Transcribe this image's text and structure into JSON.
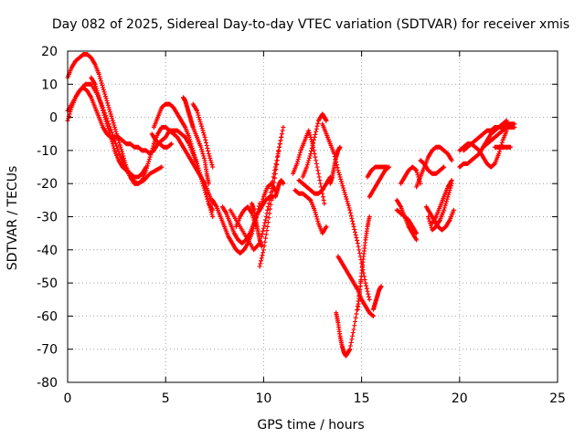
{
  "chart_data": {
    "type": "scatter",
    "title": "Day 082 of 2025, Sidereal Day-to-day VTEC variation (SDTVAR) for receiver xmis",
    "xlabel": "GPS time / hours",
    "ylabel": "SDTVAR / TECUs",
    "xlim": [
      0,
      25
    ],
    "ylim": [
      -80,
      20
    ],
    "xticks": [
      "0",
      "5",
      "10",
      "15",
      "20",
      "25"
    ],
    "yticks": [
      "20",
      "10",
      "0",
      "-10",
      "-20",
      "-30",
      "-40",
      "-50",
      "-60",
      "-70",
      "-80"
    ],
    "grid": true,
    "marker": "+",
    "color": "#ff0000",
    "series": [
      {
        "x": [
          0.0,
          0.2,
          0.4,
          0.6,
          0.8,
          1.0,
          1.2,
          1.4,
          1.6,
          1.8,
          2.0,
          2.2,
          2.4,
          2.6,
          2.8,
          3.0,
          3.2,
          3.4,
          3.6,
          3.8,
          4.0,
          4.2,
          4.4,
          4.6,
          4.8,
          5.0,
          5.2,
          5.4,
          5.6,
          5.8,
          6.0,
          6.2,
          6.4,
          6.6,
          6.8,
          7.0,
          7.2,
          7.4
        ],
        "y": [
          12,
          15,
          17,
          18,
          19,
          19,
          18,
          16,
          13,
          9,
          5,
          1,
          -3,
          -7,
          -11,
          -15,
          -18,
          -20,
          -20,
          -19,
          -16,
          -12,
          -8,
          -5,
          -3,
          -3,
          -4,
          -5,
          -6,
          -8,
          -10,
          -12,
          -14,
          -16,
          -18,
          -20,
          -23,
          -26
        ]
      },
      {
        "x": [
          0.0,
          0.3,
          0.6,
          0.9,
          1.2,
          1.5,
          1.8,
          2.1,
          2.4,
          2.7,
          3.0,
          3.3,
          3.6,
          3.9,
          4.2,
          4.5,
          4.8
        ],
        "y": [
          2,
          5,
          8,
          10,
          10,
          7,
          3,
          -2,
          -7,
          -12,
          -16,
          -19,
          -20,
          -19,
          -17,
          -16,
          -15
        ]
      },
      {
        "x": [
          0.0,
          0.2,
          0.4,
          0.6,
          0.8,
          1.0,
          1.2,
          1.4,
          1.6,
          1.8,
          2.0,
          2.2,
          2.4,
          2.6,
          2.8,
          3.0,
          3.2,
          3.4,
          3.6,
          3.8,
          4.0,
          4.2
        ],
        "y": [
          -1,
          3,
          6,
          8,
          9,
          8,
          6,
          3,
          0,
          -3,
          -5,
          -6,
          -6,
          -6,
          -7,
          -8,
          -8,
          -9,
          -9,
          -10,
          -10,
          -11
        ]
      },
      {
        "x": [
          1.2,
          1.4,
          1.6,
          1.8,
          2.0,
          2.2,
          2.4,
          2.6,
          2.8,
          3.0,
          3.2,
          3.4,
          3.6,
          3.8,
          4.0
        ],
        "y": [
          12,
          10,
          6,
          2,
          -2,
          -6,
          -10,
          -13,
          -15,
          -16,
          -17,
          -18,
          -18,
          -17,
          -15
        ]
      },
      {
        "x": [
          4.2,
          4.4,
          4.6,
          4.8,
          5.0,
          5.2,
          5.4,
          5.6,
          5.8,
          6.0,
          6.2,
          6.4,
          6.6,
          6.8,
          7.0,
          7.2,
          7.4
        ],
        "y": [
          -11,
          -10,
          -8,
          -7,
          -6,
          -4,
          -4,
          -4,
          -5,
          -6,
          -8,
          -11,
          -14,
          -18,
          -22,
          -26,
          -28
        ]
      },
      {
        "x": [
          4.4,
          4.6,
          4.8,
          5.0,
          5.2,
          5.4,
          5.6,
          5.8,
          6.0,
          6.2,
          6.4,
          6.6,
          6.8,
          7.0,
          7.2,
          7.4
        ],
        "y": [
          -3,
          0,
          3,
          4,
          4,
          3,
          1,
          -1,
          -3,
          -6,
          -10,
          -14,
          -18,
          -22,
          -26,
          -30
        ]
      },
      {
        "x": [
          4.3,
          4.5,
          4.7,
          4.9,
          5.1,
          5.3
        ],
        "y": [
          -5,
          -7,
          -8,
          -9,
          -9,
          -8
        ]
      },
      {
        "x": [
          5.9,
          6.0,
          6.1,
          6.2,
          6.3,
          6.4,
          6.6,
          6.8,
          7.0,
          7.1,
          7.2
        ],
        "y": [
          6,
          5,
          3,
          1,
          -1,
          -3,
          -6,
          -9,
          -13,
          -17,
          -20
        ]
      },
      {
        "x": [
          6.4,
          6.6,
          6.8,
          7.0,
          7.2,
          7.4
        ],
        "y": [
          4,
          2,
          -2,
          -6,
          -11,
          -15
        ]
      },
      {
        "x": [
          7.4,
          7.6,
          7.8,
          8.0,
          8.2,
          8.4,
          8.6,
          8.8,
          9.0,
          9.2,
          9.4,
          9.6,
          9.8
        ],
        "y": [
          -25,
          -27,
          -30,
          -33,
          -36,
          -38,
          -40,
          -41,
          -40,
          -38,
          -35,
          -31,
          -26
        ]
      },
      {
        "x": [
          7.9,
          8.1,
          8.3,
          8.5,
          8.7,
          8.9,
          9.1,
          9.3,
          9.5,
          9.7,
          9.9,
          10.1,
          10.3,
          10.5
        ],
        "y": [
          -27,
          -29,
          -32,
          -35,
          -37,
          -38,
          -37,
          -35,
          -32,
          -29,
          -27,
          -25,
          -24,
          -24
        ]
      },
      {
        "x": [
          8.3,
          8.6,
          8.9,
          9.2,
          9.5,
          9.8
        ],
        "y": [
          -28,
          -31,
          -34,
          -37,
          -40,
          -38
        ]
      },
      {
        "x": [
          8.6,
          8.8,
          9.0,
          9.2,
          9.4,
          9.6
        ],
        "y": [
          -33,
          -30,
          -28,
          -27,
          -29,
          -33
        ]
      },
      {
        "x": [
          9.4,
          9.5,
          9.6,
          9.7,
          9.8,
          9.9
        ],
        "y": [
          -26,
          -28,
          -31,
          -34,
          -37,
          -39
        ]
      },
      {
        "x": [
          9.8,
          10.0,
          10.2,
          10.4,
          10.6,
          10.8,
          11.0
        ],
        "y": [
          -45,
          -40,
          -33,
          -25,
          -17,
          -9,
          -3
        ]
      },
      {
        "x": [
          9.9,
          10.1,
          10.3,
          10.5,
          10.7,
          10.9
        ],
        "y": [
          -36,
          -31,
          -25,
          -18,
          -12,
          -6
        ]
      },
      {
        "x": [
          9.8,
          10.0,
          10.2,
          10.4,
          10.6
        ],
        "y": [
          -28,
          -24,
          -21,
          -20,
          -22
        ]
      },
      {
        "x": [
          10.6,
          10.7,
          10.8,
          10.9,
          11.0
        ],
        "y": [
          -24,
          -22,
          -20,
          -19,
          -20
        ]
      },
      {
        "x": [
          11.5,
          11.7,
          11.9,
          12.1,
          12.3,
          12.5,
          12.7,
          12.9,
          13.1
        ],
        "y": [
          -17,
          -14,
          -10,
          -7,
          -4,
          -8,
          -14,
          -20,
          -26
        ]
      },
      {
        "x": [
          11.6,
          11.8,
          12.0,
          12.2,
          12.4,
          12.6,
          12.8,
          13.0,
          13.2
        ],
        "y": [
          -22,
          -23,
          -23,
          -24,
          -25,
          -28,
          -32,
          -35,
          -33
        ]
      },
      {
        "x": [
          11.8,
          12.0,
          12.2,
          12.4,
          12.6,
          12.8,
          13.0,
          13.2,
          13.4
        ],
        "y": [
          -19,
          -20,
          -21,
          -22,
          -23,
          -23,
          -22,
          -20,
          -18
        ]
      },
      {
        "x": [
          12.0,
          12.2,
          12.4,
          12.6,
          12.8,
          13.0,
          13.1,
          13.2
        ],
        "y": [
          -18,
          -15,
          -11,
          -6,
          -1,
          1,
          0,
          -1
        ]
      },
      {
        "x": [
          13.0,
          13.2,
          13.4,
          13.6,
          13.8,
          14.0,
          14.2,
          14.4,
          14.6,
          14.8,
          15.0,
          15.2,
          15.4
        ],
        "y": [
          -2,
          -5,
          -8,
          -11,
          -16,
          -20,
          -24,
          -28,
          -33,
          -38,
          -44,
          -50,
          -55
        ]
      },
      {
        "x": [
          13.4,
          13.5,
          13.6,
          13.7,
          13.8,
          13.9
        ],
        "y": [
          -20,
          -18,
          -15,
          -12,
          -10,
          -9
        ]
      },
      {
        "x": [
          13.7,
          13.8,
          13.9,
          14.0,
          14.1,
          14.2,
          14.3,
          14.4,
          14.6,
          14.8,
          15.0
        ],
        "y": [
          -59,
          -62,
          -66,
          -69,
          -71,
          -72,
          -71,
          -70,
          -64,
          -57,
          -48
        ]
      },
      {
        "x": [
          13.8,
          14.0,
          14.2,
          14.4,
          14.6,
          14.8,
          15.0,
          15.2,
          15.4,
          15.6
        ],
        "y": [
          -42,
          -44,
          -46,
          -48,
          -50,
          -52,
          -55,
          -57,
          -59,
          -60
        ]
      },
      {
        "x": [
          14.8,
          14.9,
          15.0,
          15.1,
          15.2,
          15.3,
          15.4
        ],
        "y": [
          -58,
          -53,
          -47,
          -42,
          -37,
          -33,
          -30
        ]
      },
      {
        "x": [
          15.6,
          15.7,
          15.8,
          15.9,
          16.0
        ],
        "y": [
          -58,
          -56,
          -54,
          -52,
          -51
        ]
      },
      {
        "x": [
          15.3,
          15.5,
          15.7,
          15.9,
          16.1,
          16.3
        ],
        "y": [
          -18,
          -16,
          -15,
          -15,
          -15,
          -15
        ]
      },
      {
        "x": [
          15.4,
          15.6,
          15.8,
          16.0,
          16.2,
          16.4
        ],
        "y": [
          -24,
          -22,
          -20,
          -18,
          -16,
          -15
        ]
      },
      {
        "x": [
          16.8,
          17.0,
          17.2,
          17.4,
          17.6,
          17.8
        ],
        "y": [
          -25,
          -27,
          -30,
          -33,
          -35,
          -37
        ]
      },
      {
        "x": [
          16.8,
          17.0,
          17.2,
          17.4,
          17.6,
          17.8
        ],
        "y": [
          -28,
          -29,
          -30,
          -31,
          -33,
          -35
        ]
      },
      {
        "x": [
          17.0,
          17.2,
          17.4,
          17.6,
          17.8,
          18.0
        ],
        "y": [
          -20,
          -18,
          -16,
          -15,
          -16,
          -20
        ]
      },
      {
        "x": [
          17.8,
          18.0,
          18.2,
          18.4,
          18.6,
          18.8,
          19.0,
          19.2,
          19.4,
          19.6
        ],
        "y": [
          -21,
          -18,
          -15,
          -12,
          -10,
          -9,
          -9,
          -10,
          -11,
          -13
        ]
      },
      {
        "x": [
          18.0,
          18.2,
          18.4,
          18.6,
          18.8,
          19.0,
          19.2
        ],
        "y": [
          -13,
          -14,
          -16,
          -17,
          -17,
          -16,
          -15
        ]
      },
      {
        "x": [
          18.3,
          18.5,
          18.7,
          18.9,
          19.1,
          19.3,
          19.5,
          19.7
        ],
        "y": [
          -27,
          -29,
          -31,
          -33,
          -34,
          -33,
          -31,
          -28
        ]
      },
      {
        "x": [
          18.4,
          18.6,
          18.8,
          19.0,
          19.2,
          19.4,
          19.6
        ],
        "y": [
          -30,
          -34,
          -33,
          -31,
          -28,
          -24,
          -20
        ]
      },
      {
        "x": [
          18.6,
          18.8,
          19.0,
          19.2,
          19.4,
          19.6
        ],
        "y": [
          -32,
          -30,
          -27,
          -24,
          -21,
          -19
        ]
      },
      {
        "x": [
          20.0,
          20.2,
          20.4,
          20.6,
          20.8,
          21.0,
          21.2,
          21.4,
          21.6,
          21.8,
          22.0,
          22.2,
          22.4,
          22.6,
          22.8
        ],
        "y": [
          -10,
          -9,
          -8,
          -8,
          -7,
          -6,
          -5,
          -4,
          -4,
          -3,
          -3,
          -3,
          -2,
          -2,
          -2
        ]
      },
      {
        "x": [
          20.0,
          20.2,
          20.4,
          20.6,
          20.8,
          21.0,
          21.2,
          21.4,
          21.6,
          21.8,
          22.0,
          22.2,
          22.4
        ],
        "y": [
          -15,
          -14,
          -14,
          -13,
          -12,
          -11,
          -9,
          -7,
          -5,
          -4,
          -3,
          -2,
          -1
        ]
      },
      {
        "x": [
          20.2,
          20.4,
          20.6,
          20.8,
          21.0,
          21.2,
          21.4,
          21.6,
          21.8,
          22.0,
          22.2,
          22.4
        ],
        "y": [
          -10,
          -9,
          -8,
          -9,
          -10,
          -12,
          -14,
          -15,
          -14,
          -11,
          -7,
          -4
        ]
      },
      {
        "x": [
          21.2,
          21.4,
          21.6,
          21.8,
          22.0,
          22.2,
          22.4,
          22.6,
          22.8
        ],
        "y": [
          -9,
          -8,
          -7,
          -6,
          -5,
          -4,
          -3,
          -3,
          -3
        ]
      },
      {
        "x": [
          21.8,
          22.0,
          22.2,
          22.4,
          22.6
        ],
        "y": [
          -9,
          -9,
          -9,
          -9,
          -9
        ]
      }
    ]
  }
}
